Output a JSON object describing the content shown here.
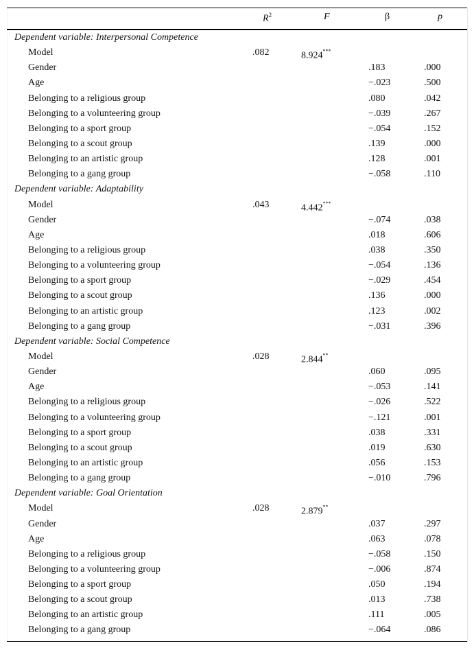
{
  "header": {
    "label": "",
    "r2": "R",
    "r2_sup": "2",
    "f": "F",
    "beta": "β",
    "p": "p"
  },
  "sections": [
    {
      "title": "Dependent variable: Interpersonal Competence",
      "model": {
        "label": "Model",
        "r2": ".082",
        "f": "8.924",
        "sig": "***"
      },
      "rows": [
        {
          "label": "Gender",
          "beta": ".183",
          "p": ".000"
        },
        {
          "label": "Age",
          "beta": "−.023",
          "p": ".500"
        },
        {
          "label": "Belonging to a religious group",
          "beta": ".080",
          "p": ".042"
        },
        {
          "label": "Belonging to a volunteering group",
          "beta": "−.039",
          "p": ".267"
        },
        {
          "label": "Belonging to a sport group",
          "beta": "−.054",
          "p": ".152"
        },
        {
          "label": "Belonging to a scout group",
          "beta": ".139",
          "p": ".000"
        },
        {
          "label": "Belonging to an artistic group",
          "beta": ".128",
          "p": ".001"
        },
        {
          "label": "Belonging to a gang group",
          "beta": "−.058",
          "p": ".110"
        }
      ]
    },
    {
      "title": "Dependent variable: Adaptability",
      "model": {
        "label": "Model",
        "r2": ".043",
        "f": "4.442",
        "sig": "***"
      },
      "rows": [
        {
          "label": "Gender",
          "beta": "−.074",
          "p": ".038"
        },
        {
          "label": "Age",
          "beta": ".018",
          "p": ".606"
        },
        {
          "label": "Belonging to a religious group",
          "beta": ".038",
          "p": ".350"
        },
        {
          "label": "Belonging to a volunteering group",
          "beta": "−.054",
          "p": ".136"
        },
        {
          "label": "Belonging to a sport group",
          "beta": "−.029",
          "p": ".454"
        },
        {
          "label": "Belonging to a scout group",
          "beta": ".136",
          "p": ".000"
        },
        {
          "label": "Belonging to an artistic group",
          "beta": ".123",
          "p": ".002"
        },
        {
          "label": "Belonging to a gang group",
          "beta": "−.031",
          "p": ".396"
        }
      ]
    },
    {
      "title": "Dependent variable: Social Competence",
      "model": {
        "label": "Model",
        "r2": ".028",
        "f": "2.844",
        "sig": "**"
      },
      "rows": [
        {
          "label": "Gender",
          "beta": ".060",
          "p": ".095"
        },
        {
          "label": "Age",
          "beta": "−.053",
          "p": ".141"
        },
        {
          "label": "Belonging to a religious group",
          "beta": "−.026",
          "p": ".522"
        },
        {
          "label": "Belonging to a volunteering group",
          "beta": "−.121",
          "p": ".001"
        },
        {
          "label": "Belonging to a sport group",
          "beta": ".038",
          "p": ".331"
        },
        {
          "label": "Belonging to a scout group",
          "beta": ".019",
          "p": ".630"
        },
        {
          "label": "Belonging to an artistic group",
          "beta": ".056",
          "p": ".153"
        },
        {
          "label": "Belonging to a gang group",
          "beta": "−.010",
          "p": ".796"
        }
      ]
    },
    {
      "title": "Dependent variable: Goal Orientation",
      "model": {
        "label": "Model",
        "r2": ".028",
        "f": "2.879",
        "sig": "**"
      },
      "rows": [
        {
          "label": "Gender",
          "beta": ".037",
          "p": ".297"
        },
        {
          "label": "Age",
          "beta": ".063",
          "p": ".078"
        },
        {
          "label": "Belonging to a religious group",
          "beta": "−.058",
          "p": ".150"
        },
        {
          "label": "Belonging to a volunteering group",
          "beta": "−.006",
          "p": ".874"
        },
        {
          "label": "Belonging to a sport group",
          "beta": ".050",
          "p": ".194"
        },
        {
          "label": "Belonging to a scout group",
          "beta": ".013",
          "p": ".738"
        },
        {
          "label": "Belonging to an artistic group",
          "beta": ".111",
          "p": ".005"
        },
        {
          "label": "Belonging to a gang group",
          "beta": "−.064",
          "p": ".086"
        }
      ]
    }
  ]
}
